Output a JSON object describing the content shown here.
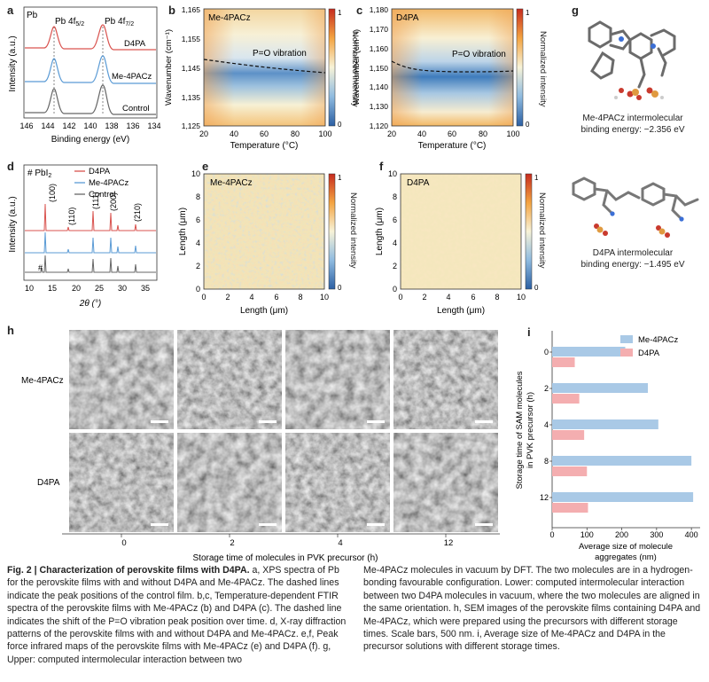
{
  "panels": {
    "a": {
      "label": "a",
      "element": "Pb",
      "peak1": "Pb 4f",
      "peak1_sub": "5/2",
      "peak2": "Pb 4f",
      "peak2_sub": "7/2",
      "series": [
        "D4PA",
        "Me-4PACz",
        "Control"
      ],
      "colors": [
        "#d9534f",
        "#5b9bd5",
        "#555555"
      ],
      "xlabel": "Binding energy (eV)",
      "ylabel": "Intensity (a.u.)",
      "xticks": [
        "146",
        "144",
        "142",
        "140",
        "138",
        "136",
        "134"
      ]
    },
    "b": {
      "label": "b",
      "title": "Me-4PACz",
      "annotation": "P=O vibration",
      "ylabel": "Wavenumber (cm⁻¹)",
      "xlabel": "Temperature (°C)",
      "yticks": [
        "1,165",
        "1,155",
        "1,145",
        "1,135",
        "1,125"
      ],
      "xticks": [
        "20",
        "40",
        "60",
        "80",
        "100"
      ],
      "cbar_label": "Normalized intensity",
      "cbar_ticks": [
        "1",
        "0"
      ]
    },
    "c": {
      "label": "c",
      "title": "D4PA",
      "annotation": "P=O vibration",
      "ylabel": "Wavenumber (cm⁻¹)",
      "xlabel": "Temperature (°C)",
      "yticks": [
        "1,180",
        "1,170",
        "1,160",
        "1,150",
        "1,140",
        "1,130",
        "1,120"
      ],
      "xticks": [
        "20",
        "40",
        "60",
        "80",
        "100"
      ],
      "cbar_label": "Normalized intensity",
      "cbar_ticks": [
        "1",
        "0"
      ]
    },
    "d": {
      "label": "d",
      "marker": "# PbI",
      "marker_sub": "2",
      "series": [
        "D4PA",
        "Me-4PACz",
        "Control"
      ],
      "colors": [
        "#d9534f",
        "#5b9bd5",
        "#555555"
      ],
      "peaks": [
        "(100)",
        "(110)",
        "(111)",
        "(200)",
        "(210)"
      ],
      "hash": "#",
      "xlabel": "2θ (°)",
      "ylabel": "Intensity (a.u.)",
      "xticks": [
        "10",
        "15",
        "20",
        "25",
        "30",
        "35"
      ]
    },
    "e": {
      "label": "e",
      "title": "Me-4PACz",
      "xlabel": "Length (μm)",
      "ylabel": "Length (μm)",
      "ticks": [
        "0",
        "2",
        "4",
        "6",
        "8",
        "10"
      ],
      "cbar_label": "Normalized intensity",
      "cbar_ticks": [
        "1",
        "0"
      ]
    },
    "f": {
      "label": "f",
      "title": "D4PA",
      "xlabel": "Length (μm)",
      "ylabel": "Length (μm)",
      "ticks": [
        "0",
        "2",
        "4",
        "6",
        "8",
        "10"
      ],
      "cbar_label": "Normalized intensity",
      "cbar_ticks": [
        "1",
        "0"
      ]
    },
    "g": {
      "label": "g",
      "upper_caption_1": "Me-4PACz intermolecular",
      "upper_caption_2": "binding energy: −2.356 eV",
      "lower_caption_1": "D4PA intermolecular",
      "lower_caption_2": "binding energy: −1.495 eV"
    },
    "h": {
      "label": "h",
      "rows": [
        "Me-4PACz",
        "D4PA"
      ],
      "cols": [
        "0",
        "2",
        "4",
        "12"
      ],
      "xlabel": "Storage time of molecules in PVK precursor (h)"
    },
    "i": {
      "label": "i",
      "ylabel_1": "Storage time of SAM molecules",
      "ylabel_2": "in PVK precursor (h)",
      "xlabel_1": "Average size of molecule",
      "xlabel_2": "aggregates (nm)",
      "xticks": [
        "0",
        "100",
        "200",
        "300",
        "400"
      ]
    }
  },
  "chart_data": [
    {
      "type": "bar",
      "orientation": "horizontal",
      "title": "",
      "categories": [
        "0",
        "2",
        "4",
        "8",
        "12"
      ],
      "series": [
        {
          "name": "Me-4PACz",
          "values": [
            210,
            275,
            305,
            400,
            405
          ]
        },
        {
          "name": "D4PA",
          "values": [
            65,
            78,
            92,
            100,
            103
          ]
        }
      ],
      "xlabel": "Average size of molecule aggregates (nm)",
      "ylabel": "Storage time of SAM molecules in PVK precursor (h)",
      "xlim": [
        0,
        420
      ]
    }
  ],
  "caption": {
    "fig_label": "Fig. 2 | ",
    "fig_title": "Characterization of perovskite films with D4PA.",
    "left_text": " a, XPS spectra of Pb for the perovskite films with and without D4PA and Me-4PACz. The dashed lines indicate the peak positions of the control film. b,c, Temperature-dependent FTIR spectra of the perovskite films with Me-4PACz (b) and D4PA (c). The dashed line indicates the shift of the P=O vibration peak position over time. d, X-ray diffraction patterns of the perovskite films with and without D4PA and Me-4PACz. e,f, Peak force infrared maps of the perovskite films with Me-4PACz (e) and D4PA (f). g, Upper: computed intermolecular interaction between two",
    "right_text": "Me-4PACz molecules in vacuum by DFT. The two molecules are in a hydrogen-bonding favourable configuration. Lower: computed intermolecular interaction between two D4PA molecules in vacuum, where the two molecules are aligned in the same orientation. h, SEM images of the perovskite films containing D4PA and Me-4PACz, which were prepared using the precursors with different storage times. Scale bars, 500 nm. i, Average size of Me-4PACz and D4PA in the precursor solutions with different storage times."
  }
}
